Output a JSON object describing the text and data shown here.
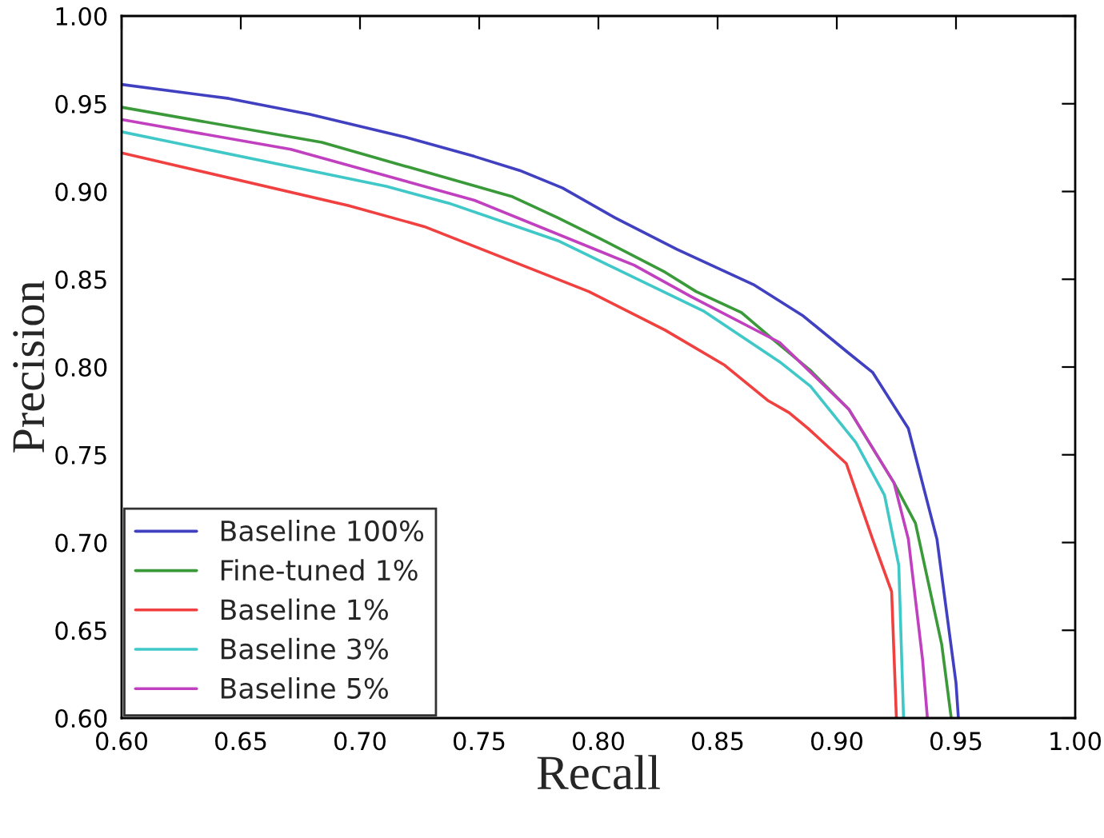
{
  "chart_data": {
    "type": "line",
    "xlabel": "Recall",
    "ylabel": "Precision",
    "xlim": [
      0.6,
      1.0
    ],
    "ylim": [
      0.6,
      1.0
    ],
    "xticks": [
      {
        "value": 0.6,
        "label": "0.60"
      },
      {
        "value": 0.65,
        "label": "0.65"
      },
      {
        "value": 0.7,
        "label": "0.70"
      },
      {
        "value": 0.75,
        "label": "0.75"
      },
      {
        "value": 0.8,
        "label": "0.80"
      },
      {
        "value": 0.85,
        "label": "0.85"
      },
      {
        "value": 0.9,
        "label": "0.90"
      },
      {
        "value": 0.95,
        "label": "0.95"
      },
      {
        "value": 1.0,
        "label": "1.00"
      }
    ],
    "yticks": [
      {
        "value": 0.6,
        "label": "0.60"
      },
      {
        "value": 0.65,
        "label": "0.65"
      },
      {
        "value": 0.7,
        "label": "0.70"
      },
      {
        "value": 0.75,
        "label": "0.75"
      },
      {
        "value": 0.8,
        "label": "0.80"
      },
      {
        "value": 0.85,
        "label": "0.85"
      },
      {
        "value": 0.9,
        "label": "0.90"
      },
      {
        "value": 0.95,
        "label": "0.95"
      },
      {
        "value": 1.0,
        "label": "1.00"
      }
    ],
    "grid": false,
    "legend": "bottom left",
    "marker": "none",
    "line_style": "solid",
    "series": [
      {
        "name": "Baseline 100%",
        "color": "#4040c0",
        "x": [
          0.6,
          0.645,
          0.679,
          0.719,
          0.748,
          0.767,
          0.785,
          0.807,
          0.833,
          0.865,
          0.886,
          0.904,
          0.915,
          0.93,
          0.942,
          0.95,
          0.951
        ],
        "values": [
          0.961,
          0.953,
          0.944,
          0.931,
          0.92,
          0.912,
          0.902,
          0.885,
          0.867,
          0.847,
          0.829,
          0.809,
          0.797,
          0.765,
          0.702,
          0.62,
          0.6
        ]
      },
      {
        "name": "Fine-tuned 1%",
        "color": "#3a9a3a",
        "x": [
          0.6,
          0.684,
          0.764,
          0.783,
          0.801,
          0.828,
          0.841,
          0.86,
          0.873,
          0.889,
          0.905,
          0.924,
          0.933,
          0.944,
          0.948
        ],
        "values": [
          0.948,
          0.928,
          0.897,
          0.885,
          0.873,
          0.854,
          0.843,
          0.831,
          0.816,
          0.798,
          0.776,
          0.734,
          0.711,
          0.642,
          0.6
        ]
      },
      {
        "name": "Baseline 1%",
        "color": "#f04040",
        "x": [
          0.6,
          0.695,
          0.727,
          0.796,
          0.828,
          0.853,
          0.871,
          0.88,
          0.888,
          0.904,
          0.915,
          0.923,
          0.925
        ],
        "values": [
          0.922,
          0.892,
          0.88,
          0.843,
          0.821,
          0.801,
          0.781,
          0.774,
          0.765,
          0.745,
          0.702,
          0.672,
          0.6
        ]
      },
      {
        "name": "Baseline 3%",
        "color": "#40c8c8",
        "x": [
          0.6,
          0.711,
          0.738,
          0.783,
          0.844,
          0.876,
          0.889,
          0.908,
          0.92,
          0.926,
          0.928
        ],
        "values": [
          0.934,
          0.903,
          0.893,
          0.872,
          0.832,
          0.803,
          0.789,
          0.757,
          0.727,
          0.687,
          0.6
        ]
      },
      {
        "name": "Baseline 5%",
        "color": "#c040c0",
        "x": [
          0.6,
          0.671,
          0.748,
          0.815,
          0.839,
          0.876,
          0.905,
          0.924,
          0.93,
          0.936,
          0.938
        ],
        "values": [
          0.941,
          0.924,
          0.895,
          0.858,
          0.84,
          0.814,
          0.776,
          0.734,
          0.702,
          0.633,
          0.6
        ]
      }
    ]
  }
}
